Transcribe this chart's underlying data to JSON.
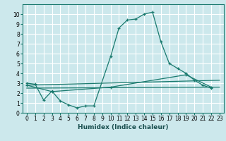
{
  "xlabel": "Humidex (Indice chaleur)",
  "background_color": "#cce8ec",
  "grid_color": "#ffffff",
  "line_color": "#1a7a6e",
  "xlim": [
    -0.5,
    23.5
  ],
  "ylim": [
    0,
    11
  ],
  "xticks": [
    0,
    1,
    2,
    3,
    4,
    5,
    6,
    7,
    8,
    9,
    10,
    11,
    12,
    13,
    14,
    15,
    16,
    17,
    18,
    19,
    20,
    21,
    22,
    23
  ],
  "yticks": [
    0,
    1,
    2,
    3,
    4,
    5,
    6,
    7,
    8,
    9,
    10
  ],
  "main_curve_x": [
    0,
    1,
    2,
    3,
    4,
    5,
    6,
    7,
    8,
    10,
    11,
    12,
    13,
    14,
    15,
    16,
    17,
    18,
    19,
    20,
    21,
    22
  ],
  "main_curve_y": [
    3.0,
    2.9,
    1.3,
    2.2,
    1.2,
    0.8,
    0.5,
    0.7,
    0.7,
    5.7,
    8.6,
    9.4,
    9.5,
    10.0,
    10.2,
    7.2,
    5.0,
    4.5,
    4.0,
    3.3,
    2.8,
    2.5
  ],
  "line1_x": [
    0,
    23
  ],
  "line1_y": [
    2.8,
    3.3
  ],
  "line2_x": [
    0,
    23
  ],
  "line2_y": [
    2.5,
    2.6
  ],
  "line3_x": [
    0,
    3,
    10,
    19,
    22
  ],
  "line3_y": [
    2.8,
    2.15,
    2.6,
    3.85,
    2.6
  ]
}
